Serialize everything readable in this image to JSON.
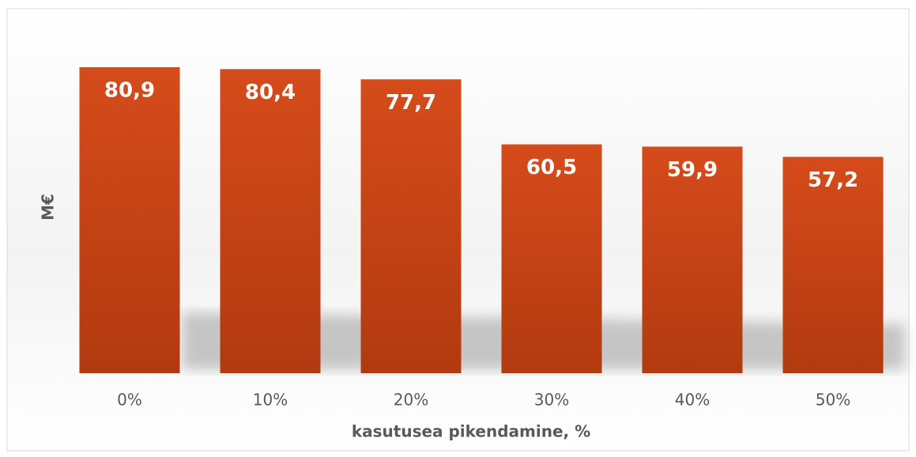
{
  "chart_data": {
    "type": "bar",
    "xlabel": "kasutusea pikendamine, %",
    "ylabel": "M€",
    "categories": [
      "0%",
      "10%",
      "20%",
      "30%",
      "40%",
      "50%"
    ],
    "values": [
      80.9,
      80.4,
      77.7,
      60.5,
      59.9,
      57.2
    ],
    "value_labels": [
      "80,9",
      "80,4",
      "77,7",
      "60,5",
      "59,9",
      "57,2"
    ],
    "color": "#c8441a"
  }
}
